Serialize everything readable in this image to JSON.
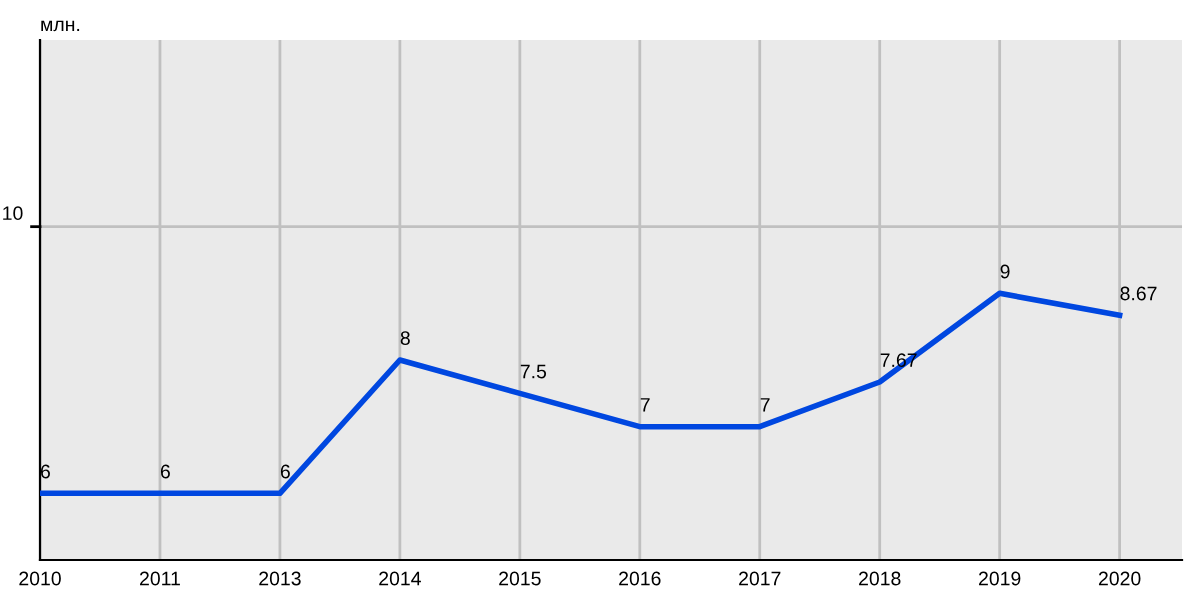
{
  "chart_data": {
    "type": "line",
    "ylabel": "млн.",
    "categories": [
      "2010",
      "2011",
      "2013",
      "2014",
      "2015",
      "2016",
      "2017",
      "2018",
      "2019",
      "2020"
    ],
    "series": [
      {
        "color": "#0047e0",
        "values": [
          6,
          6,
          6,
          8,
          7.5,
          7,
          7,
          7.67,
          9,
          8.67
        ]
      }
    ],
    "ylim": [
      5,
      12.8
    ],
    "ref_lines": [
      {
        "axis": "y",
        "value": 10,
        "label": "10"
      }
    ],
    "grid": "x",
    "data_labels": true,
    "marker": "none",
    "line_style": "solid"
  }
}
